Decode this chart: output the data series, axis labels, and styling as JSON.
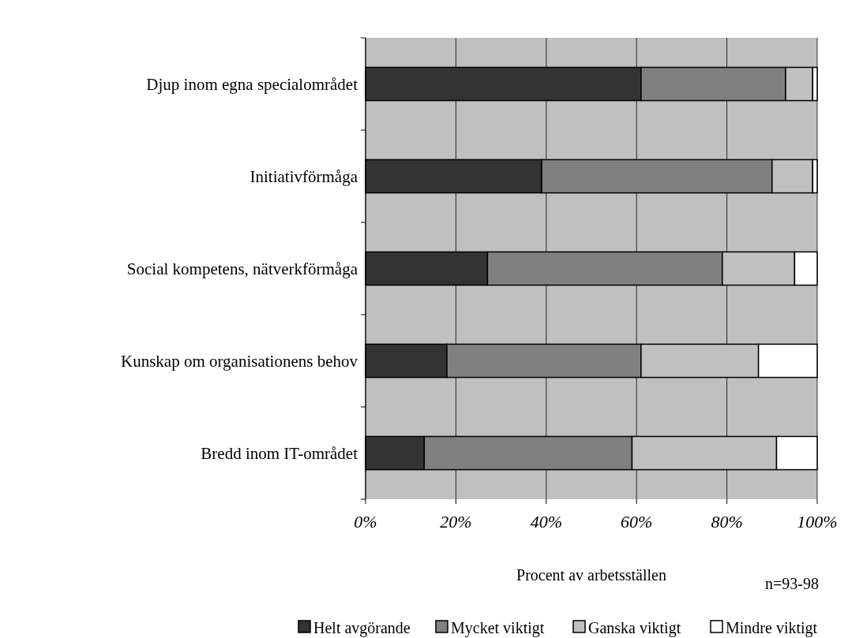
{
  "chart_data": {
    "type": "bar",
    "orientation": "horizontal",
    "stacked": true,
    "categories": [
      "Djup inom egna specialområdet",
      "Initiativförmåga",
      "Social kompetens, nätverkförmåga",
      "Kunskap om organisationens behov",
      "Bredd inom IT-området"
    ],
    "series": [
      {
        "name": "Helt avgörande",
        "color": "#333333",
        "values": [
          61,
          39,
          27,
          18,
          13
        ]
      },
      {
        "name": "Mycket viktigt",
        "color": "#808080",
        "values": [
          32,
          51,
          52,
          43,
          46
        ]
      },
      {
        "name": "Ganska viktigt",
        "color": "#c0c0c0",
        "values": [
          6,
          9,
          16,
          26,
          32
        ]
      },
      {
        "name": "Mindre viktigt",
        "color": "#ffffff",
        "values": [
          1,
          1,
          5,
          13,
          9
        ]
      }
    ],
    "xlim": [
      0,
      100
    ],
    "xticks": [
      {
        "value": 0,
        "label": "0%"
      },
      {
        "value": 20,
        "label": "20%"
      },
      {
        "value": 40,
        "label": "40%"
      },
      {
        "value": 60,
        "label": "60%"
      },
      {
        "value": 80,
        "label": "80%"
      },
      {
        "value": 100,
        "label": "100%"
      }
    ],
    "xlabel": "Procent av arbetsställen",
    "annotations": [
      "n=93-98"
    ],
    "grid": "x",
    "legend": "bottom"
  }
}
